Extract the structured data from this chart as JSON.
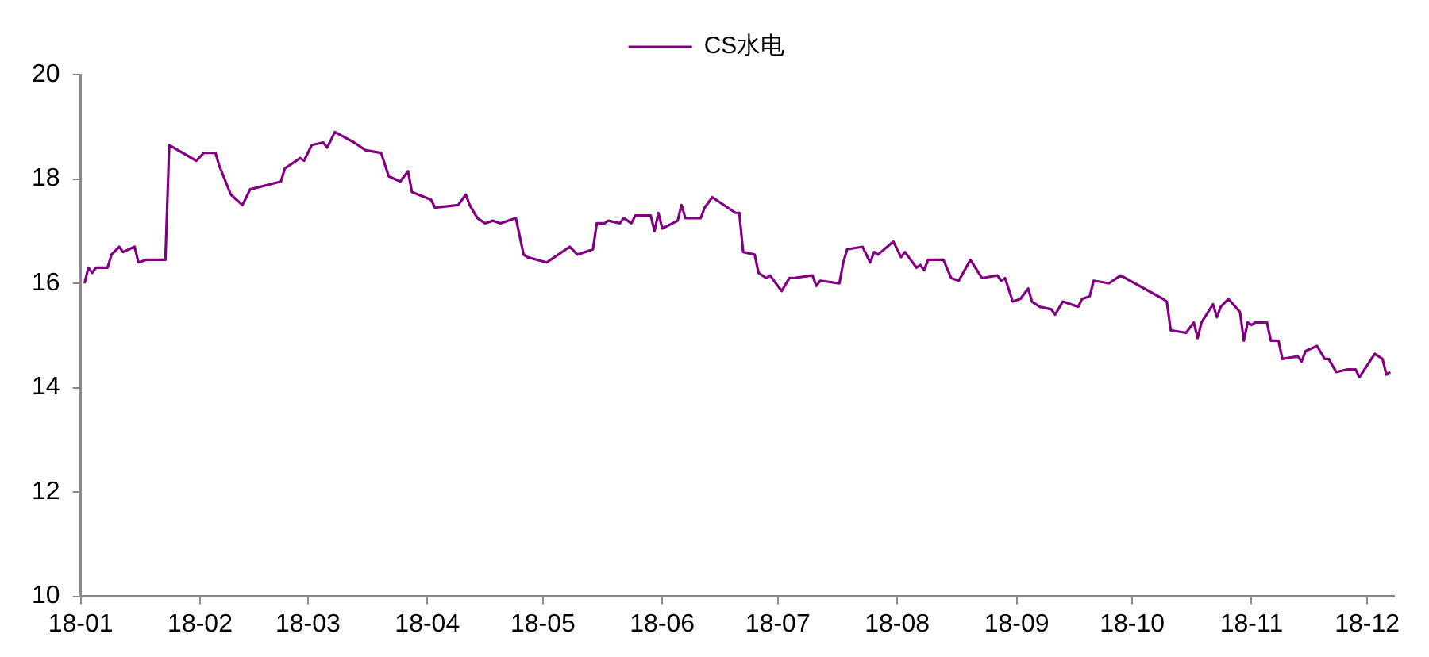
{
  "chart_data": {
    "type": "line",
    "legend": "top",
    "grid": false,
    "marker": "none",
    "line_style": "solid",
    "xlim": [
      "--01-01",
      "--12-08"
    ],
    "xticks": [
      {
        "value": "--01-01",
        "label": "18-01"
      },
      {
        "value": "--02-01",
        "label": "18-02"
      },
      {
        "value": "--03-01",
        "label": "18-03"
      },
      {
        "value": "--04-01",
        "label": "18-04"
      },
      {
        "value": "--05-01",
        "label": "18-05"
      },
      {
        "value": "--06-01",
        "label": "18-06"
      },
      {
        "value": "--07-01",
        "label": "18-07"
      },
      {
        "value": "--08-01",
        "label": "18-08"
      },
      {
        "value": "--09-01",
        "label": "18-09"
      },
      {
        "value": "--10-01",
        "label": "18-10"
      },
      {
        "value": "--11-01",
        "label": "18-11"
      },
      {
        "value": "--12-01",
        "label": "18-12"
      }
    ],
    "ylim": [
      10,
      20
    ],
    "yticks": [
      10,
      12,
      14,
      16,
      18,
      20
    ],
    "series": [
      {
        "name": "CS水电",
        "color": "#800080",
        "x": [
          "--01-02",
          "--01-03",
          "--01-04",
          "--01-05",
          "--01-08",
          "--01-09",
          "--01-11",
          "--01-12",
          "--01-15",
          "--01-16",
          "--01-18",
          "--01-23",
          "--01-24",
          "--01-31",
          "--02-02",
          "--02-05",
          "--02-06",
          "--02-09",
          "--02-12",
          "--02-14",
          "--02-22",
          "--02-23",
          "--02-27",
          "--02-28",
          "--03-02",
          "--03-05",
          "--03-06",
          "--03-08",
          "--03-13",
          "--03-16",
          "--03-20",
          "--03-22",
          "--03-25",
          "--03-27",
          "--03-28",
          "--04-02",
          "--04-03",
          "--04-09",
          "--04-11",
          "--04-12",
          "--04-14",
          "--04-16",
          "--04-18",
          "--04-20",
          "--04-24",
          "--04-26",
          "--04-27",
          "--05-02",
          "--05-04",
          "--05-08",
          "--05-10",
          "--05-14",
          "--05-15",
          "--05-17",
          "--05-18",
          "--05-21",
          "--05-22",
          "--05-24",
          "--05-25",
          "--05-29",
          "--05-30",
          "--05-31",
          "--06-01",
          "--06-05",
          "--06-06",
          "--06-07",
          "--06-11",
          "--06-12",
          "--06-14",
          "--06-20",
          "--06-21",
          "--06-22",
          "--06-25",
          "--06-26",
          "--06-28",
          "--06-29",
          "--07-02",
          "--07-04",
          "--07-05",
          "--07-10",
          "--07-11",
          "--07-12",
          "--07-17",
          "--07-18",
          "--07-19",
          "--07-23",
          "--07-25",
          "--07-26",
          "--07-27",
          "--07-31",
          "--08-02",
          "--08-03",
          "--08-06",
          "--08-07",
          "--08-08",
          "--08-09",
          "--08-13",
          "--08-15",
          "--08-17",
          "--08-20",
          "--08-23",
          "--08-27",
          "--08-28",
          "--08-29",
          "--08-31",
          "--09-02",
          "--09-04",
          "--09-05",
          "--09-07",
          "--09-10",
          "--09-11",
          "--09-13",
          "--09-17",
          "--09-18",
          "--09-20",
          "--09-21",
          "--09-25",
          "--09-28",
          "--10-09",
          "--10-10",
          "--10-11",
          "--10-15",
          "--10-17",
          "--10-18",
          "--10-19",
          "--10-22",
          "--10-23",
          "--10-24",
          "--10-26",
          "--10-29",
          "--10-30",
          "--10-31",
          "--11-01",
          "--11-02",
          "--11-05",
          "--11-06",
          "--11-08",
          "--11-09",
          "--11-13",
          "--11-14",
          "--11-15",
          "--11-18",
          "--11-20",
          "--11-21",
          "--11-23",
          "--11-26",
          "--11-28",
          "--11-29",
          "--12-03",
          "--12-05",
          "--12-06",
          "--12-07"
        ],
        "values": [
          16.0,
          16.3,
          16.2,
          16.3,
          16.3,
          16.55,
          16.7,
          16.6,
          16.7,
          16.4,
          16.45,
          16.45,
          18.65,
          18.35,
          18.5,
          18.5,
          18.25,
          17.7,
          17.5,
          17.8,
          17.95,
          18.2,
          18.4,
          18.35,
          18.65,
          18.7,
          18.6,
          18.9,
          18.7,
          18.55,
          18.5,
          18.05,
          17.95,
          18.15,
          17.75,
          17.6,
          17.45,
          17.5,
          17.7,
          17.5,
          17.25,
          17.15,
          17.2,
          17.15,
          17.25,
          16.55,
          16.5,
          16.4,
          16.5,
          16.7,
          16.55,
          16.65,
          17.15,
          17.15,
          17.2,
          17.15,
          17.25,
          17.15,
          17.3,
          17.3,
          17.0,
          17.35,
          17.05,
          17.2,
          17.5,
          17.25,
          17.25,
          17.45,
          17.65,
          17.35,
          17.35,
          16.6,
          16.55,
          16.2,
          16.1,
          16.15,
          15.85,
          16.1,
          16.1,
          16.15,
          15.95,
          16.05,
          16.0,
          16.4,
          16.65,
          16.7,
          16.4,
          16.6,
          16.55,
          16.8,
          16.5,
          16.6,
          16.3,
          16.35,
          16.25,
          16.45,
          16.45,
          16.1,
          16.05,
          16.45,
          16.1,
          16.15,
          16.05,
          16.1,
          15.65,
          15.7,
          15.9,
          15.65,
          15.55,
          15.5,
          15.4,
          15.65,
          15.55,
          15.7,
          15.75,
          16.05,
          16.0,
          16.15,
          15.7,
          15.65,
          15.1,
          15.05,
          15.25,
          14.95,
          15.25,
          15.6,
          15.35,
          15.55,
          15.7,
          15.45,
          14.9,
          15.25,
          15.2,
          15.25,
          15.25,
          14.9,
          14.9,
          14.55,
          14.6,
          14.5,
          14.7,
          14.8,
          14.55,
          14.55,
          14.3,
          14.35,
          14.35,
          14.2,
          14.65,
          14.55,
          14.25,
          14.3
        ]
      }
    ]
  }
}
